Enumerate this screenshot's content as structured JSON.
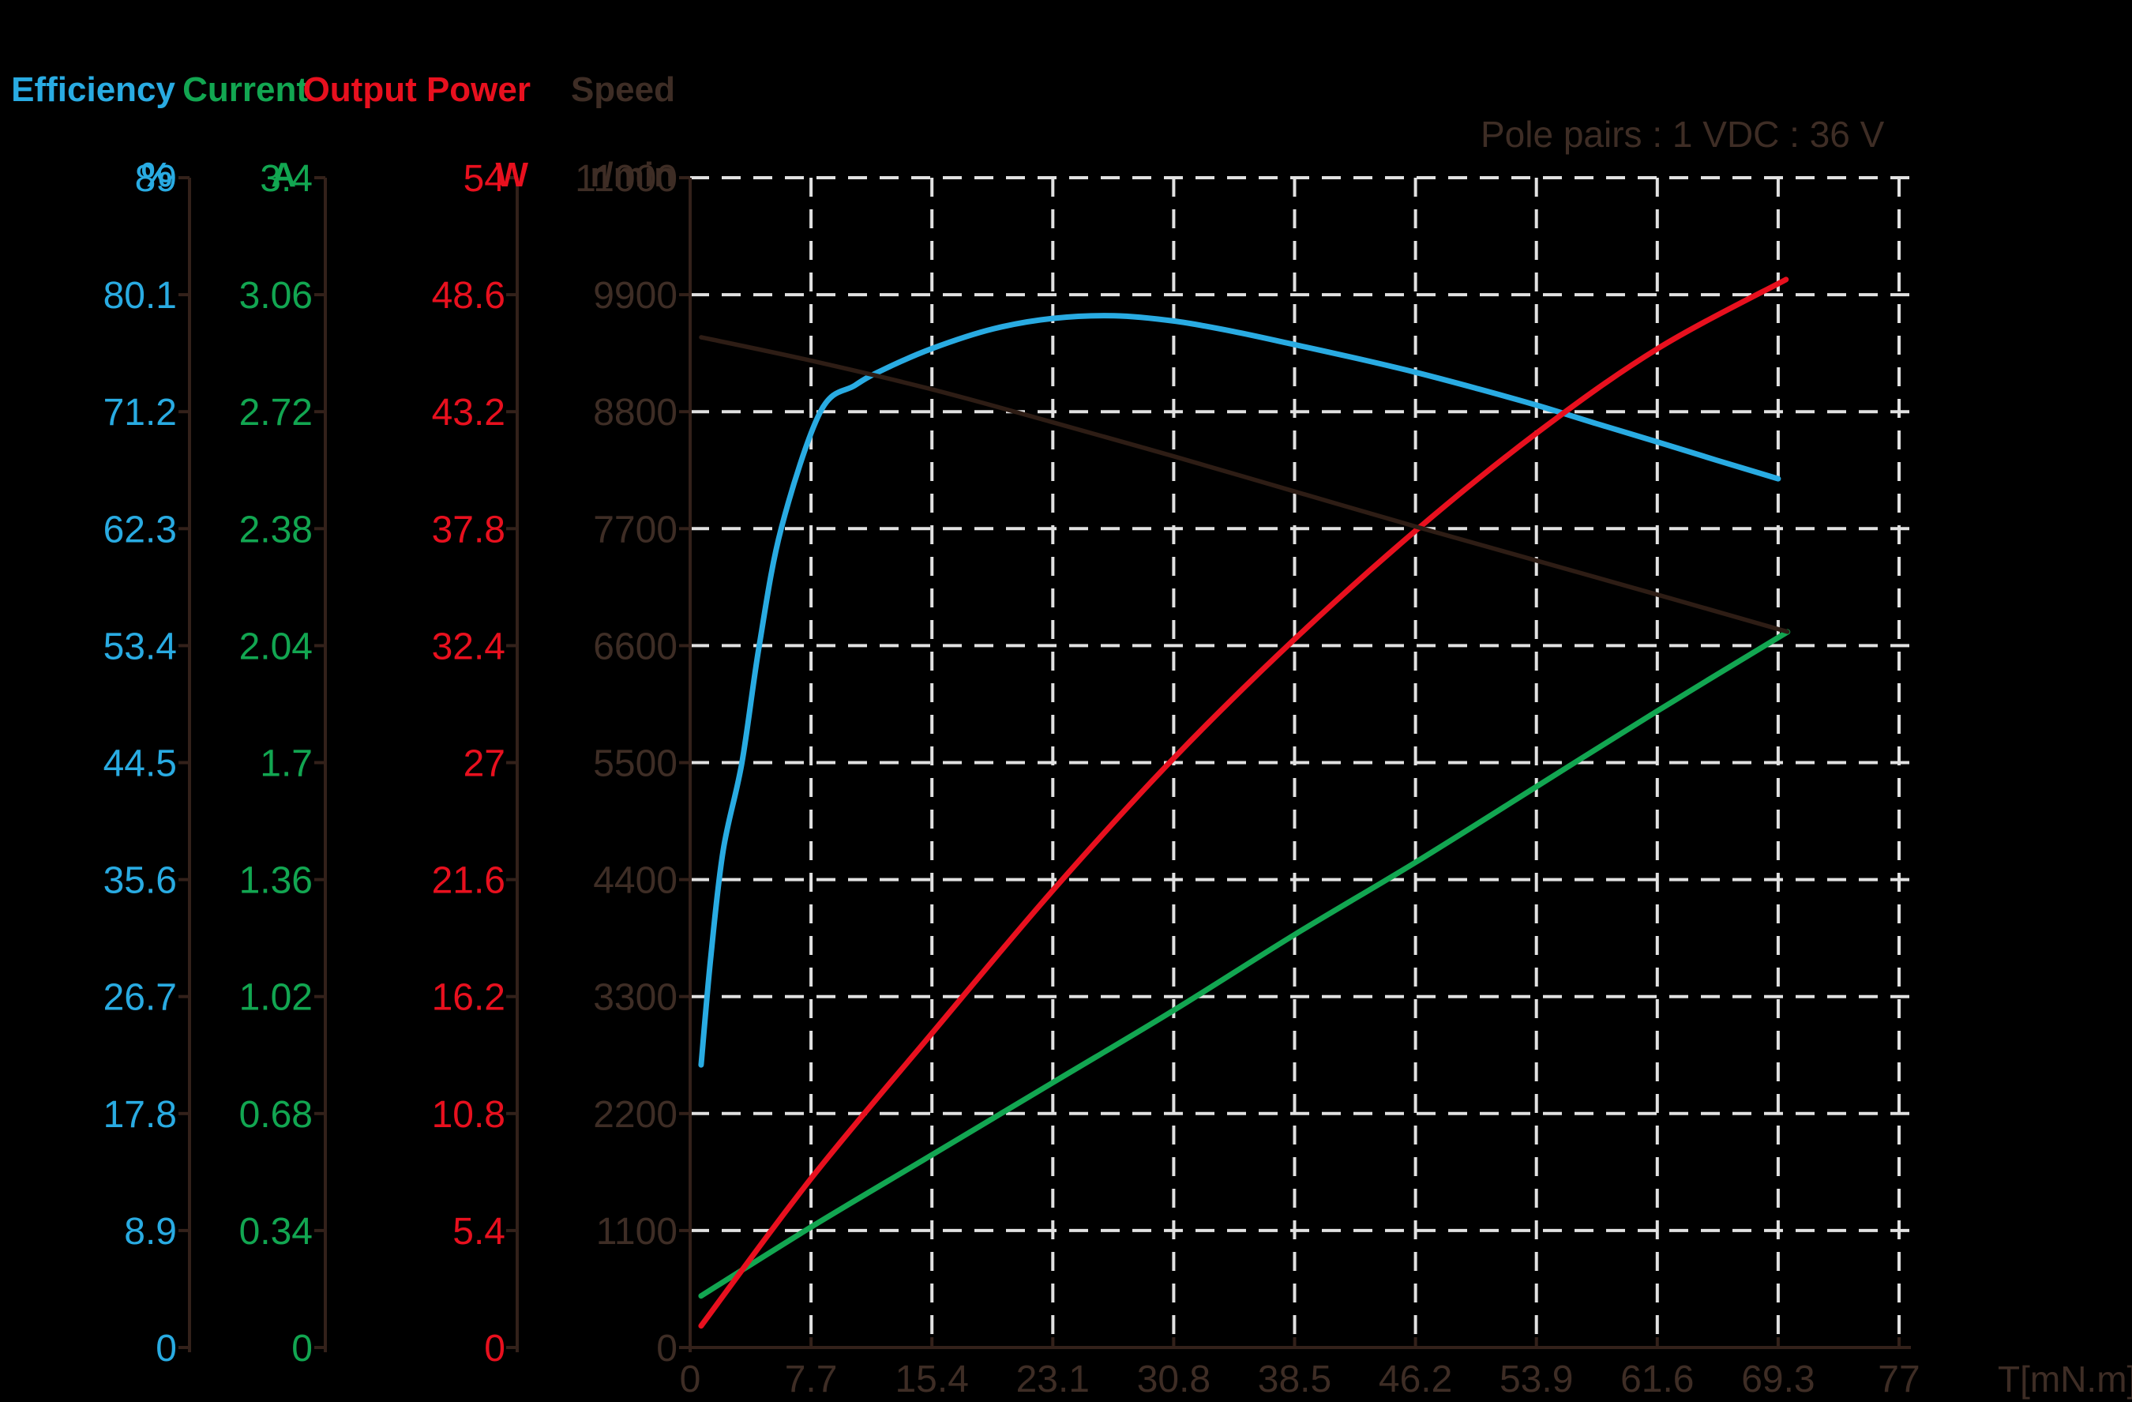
{
  "annotation": "Pole pairs : 1   VDC : 36 V",
  "headers": {
    "efficiency": {
      "title": "Efficiency",
      "unit": "%"
    },
    "current": {
      "title": "Current",
      "unit": "A"
    },
    "output_power": {
      "title": "Output Power",
      "unit": "W"
    },
    "speed": {
      "title": "Speed",
      "unit": "r/min"
    }
  },
  "x_axis": {
    "unit_label": "T[mN.m]",
    "ticks": [
      "0",
      "7.7",
      "15.4",
      "23.1",
      "30.8",
      "38.5",
      "46.2",
      "53.9",
      "61.6",
      "69.3",
      "77"
    ]
  },
  "colors": {
    "background": "#000000",
    "efficiency": "#29ABE2",
    "current": "#12A651",
    "output_power": "#E8101E",
    "speed_line": "#2E1D15",
    "speed_text": "#3E2D25",
    "axis": "#33211A",
    "grid": "#E1E1E1"
  },
  "chart_data": {
    "type": "line",
    "title": "",
    "xlabel": "T[mN.m]",
    "x_range": [
      0,
      77
    ],
    "grid": "dashed",
    "legend_position": "top-left column headers",
    "annotation": "Pole pairs : 1   VDC : 36 V",
    "axes": [
      {
        "id": "efficiency",
        "label": "Efficiency",
        "unit": "%",
        "max": 89,
        "ticks": [
          "89",
          "80.1",
          "71.2",
          "62.3",
          "53.4",
          "44.5",
          "35.6",
          "26.7",
          "17.8",
          "8.9",
          "0"
        ]
      },
      {
        "id": "current",
        "label": "Current",
        "unit": "A",
        "max": 3.4,
        "ticks": [
          "3.4",
          "3.06",
          "2.72",
          "2.38",
          "2.04",
          "1.7",
          "1.36",
          "1.02",
          "0.68",
          "0.34",
          "0"
        ]
      },
      {
        "id": "output_power",
        "label": "Output Power",
        "unit": "W",
        "max": 54,
        "ticks": [
          "54",
          "48.6",
          "43.2",
          "37.8",
          "32.4",
          "27",
          "21.6",
          "16.2",
          "10.8",
          "5.4",
          "0"
        ]
      },
      {
        "id": "speed",
        "label": "Speed",
        "unit": "r/min",
        "max": 11000,
        "ticks": [
          "11000",
          "9900",
          "8800",
          "7700",
          "6600",
          "5500",
          "4400",
          "3300",
          "2200",
          "1100",
          "0"
        ]
      }
    ],
    "series": [
      {
        "name": "Efficiency",
        "axis": "efficiency",
        "unit": "%",
        "points": [
          [
            0.7,
            21.5
          ],
          [
            1.3,
            29.5
          ],
          [
            2.1,
            37.8
          ],
          [
            3.3,
            44.5
          ],
          [
            4.4,
            53.4
          ],
          [
            5.8,
            62.3
          ],
          [
            8.3,
            71.2
          ],
          [
            10.5,
            73.2
          ],
          [
            12.3,
            74.4
          ],
          [
            15.4,
            76.0
          ],
          [
            19.3,
            77.5
          ],
          [
            23.1,
            78.3
          ],
          [
            27.0,
            78.5
          ],
          [
            30.8,
            78.1
          ],
          [
            34.6,
            77.3
          ],
          [
            38.5,
            76.3
          ],
          [
            42.3,
            75.3
          ],
          [
            46.2,
            74.2
          ],
          [
            50.0,
            73.0
          ],
          [
            53.9,
            71.7
          ],
          [
            57.7,
            70.3
          ],
          [
            61.6,
            68.9
          ],
          [
            65.4,
            67.5
          ],
          [
            69.3,
            66.1
          ]
        ]
      },
      {
        "name": "Current",
        "axis": "current",
        "unit": "A",
        "points": [
          [
            0.7,
            0.15
          ],
          [
            7.7,
            0.35
          ],
          [
            15.4,
            0.56
          ],
          [
            23.1,
            0.77
          ],
          [
            30.8,
            0.98
          ],
          [
            38.5,
            1.2
          ],
          [
            46.2,
            1.41
          ],
          [
            53.9,
            1.63
          ],
          [
            61.6,
            1.85
          ],
          [
            69.9,
            2.08
          ]
        ]
      },
      {
        "name": "Output Power",
        "axis": "output_power",
        "unit": "W",
        "points": [
          [
            0.7,
            1.0
          ],
          [
            7.7,
            7.8
          ],
          [
            15.4,
            14.5
          ],
          [
            23.1,
            21.1
          ],
          [
            30.8,
            27.2
          ],
          [
            38.5,
            32.7
          ],
          [
            46.2,
            37.7
          ],
          [
            53.9,
            42.2
          ],
          [
            61.6,
            46.1
          ],
          [
            69.8,
            49.3
          ]
        ]
      },
      {
        "name": "Speed",
        "axis": "speed",
        "unit": "r/min",
        "points": [
          [
            0.7,
            9500
          ],
          [
            7.7,
            9280
          ],
          [
            15.4,
            9010
          ],
          [
            23.1,
            8700
          ],
          [
            30.8,
            8380
          ],
          [
            38.5,
            8050
          ],
          [
            46.2,
            7720
          ],
          [
            53.9,
            7400
          ],
          [
            61.6,
            7080
          ],
          [
            69.9,
            6730
          ]
        ]
      }
    ]
  }
}
